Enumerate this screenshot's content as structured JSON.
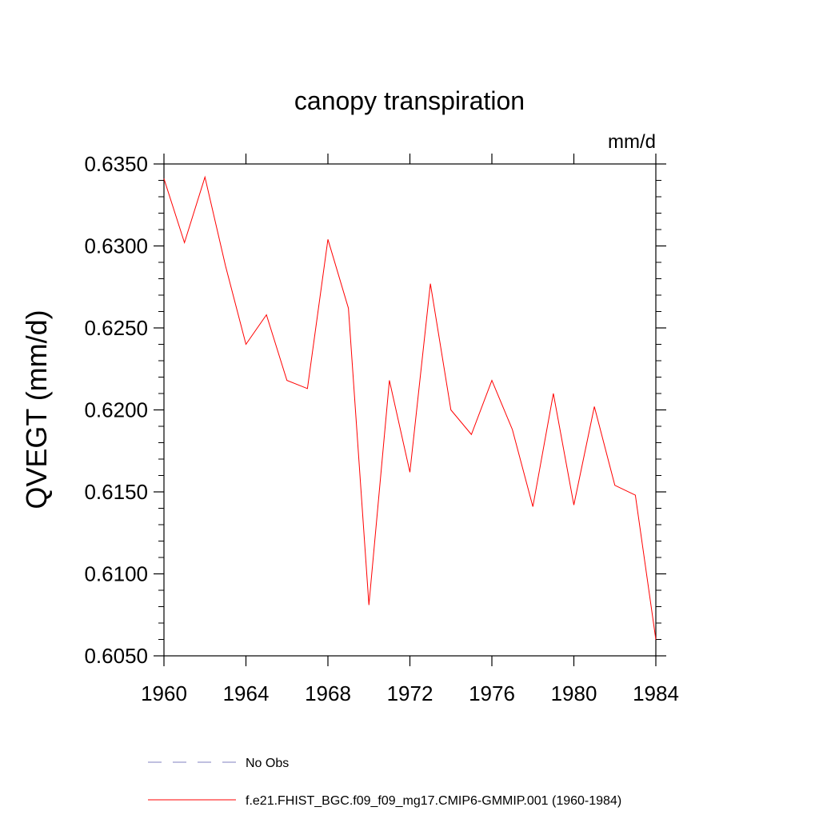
{
  "chart_data": {
    "type": "line",
    "title": "canopy transpiration",
    "units": "mm/d",
    "ylabel": "QVEGT  (mm/d)",
    "xlabel": "",
    "xlim": [
      1960,
      1984
    ],
    "ylim": [
      0.605,
      0.635
    ],
    "x_ticks": [
      1960,
      1964,
      1968,
      1972,
      1976,
      1980,
      1984
    ],
    "x_tick_labels": [
      "1960",
      "1964",
      "1968",
      "1972",
      "1976",
      "1980",
      "1984"
    ],
    "y_ticks": [
      0.605,
      0.61,
      0.615,
      0.62,
      0.625,
      0.63,
      0.635
    ],
    "y_tick_labels": [
      "0.6050",
      "0.6100",
      "0.6150",
      "0.6200",
      "0.6250",
      "0.6300",
      "0.6350"
    ],
    "x": [
      1960,
      1961,
      1962,
      1963,
      1964,
      1965,
      1966,
      1967,
      1968,
      1969,
      1970,
      1971,
      1972,
      1973,
      1974,
      1975,
      1976,
      1977,
      1978,
      1979,
      1980,
      1981,
      1982,
      1983,
      1984
    ],
    "series": [
      {
        "name": "f.e21.FHIST_BGC.f09_f09_mg17.CMIP6-GMMIP.001 (1960-1984)",
        "color": "#ff0000",
        "dash": "solid",
        "values": [
          0.6341,
          0.6302,
          0.6342,
          0.6288,
          0.624,
          0.6258,
          0.6218,
          0.6213,
          0.6304,
          0.6262,
          0.6081,
          0.6218,
          0.6162,
          0.6277,
          0.62,
          0.6185,
          0.6218,
          0.6188,
          0.6141,
          0.621,
          0.6142,
          0.6202,
          0.6154,
          0.6148,
          0.606
        ]
      }
    ],
    "legend": [
      {
        "label": "No Obs",
        "color": "#8080c0",
        "dash": "dashed"
      },
      {
        "label": "f.e21.FHIST_BGC.f09_f09_mg17.CMIP6-GMMIP.001 (1960-1984)",
        "color": "#ff0000",
        "dash": "solid"
      }
    ],
    "legend_position": "bottom",
    "grid": false
  }
}
